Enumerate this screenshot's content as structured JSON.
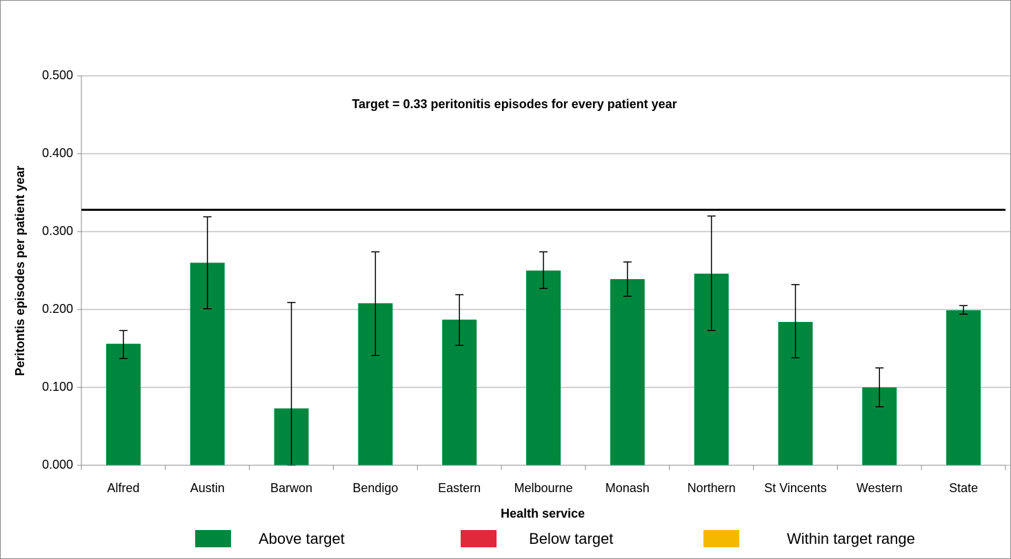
{
  "chart_data": {
    "type": "bar",
    "annotation": "Target  = 0.33 peritonitis episodes for every  patient year",
    "x_label": "Health service",
    "y_label": "Peritontis episodes per patient year",
    "categories": [
      "Alfred",
      "Austin",
      "Barwon",
      "Bendigo",
      "Eastern",
      "Melbourne",
      "Monash",
      "Northern",
      "St Vincents",
      "Western",
      "State"
    ],
    "series": [
      {
        "name": "Above target",
        "color": "#00873e",
        "values": [
          0.156,
          0.26,
          0.073,
          0.208,
          0.187,
          0.25,
          0.239,
          0.246,
          0.184,
          0.1,
          0.199
        ]
      },
      {
        "name": "Below target",
        "color": "#e0293b",
        "values": [
          null,
          null,
          null,
          null,
          null,
          null,
          null,
          null,
          null,
          null,
          null
        ]
      },
      {
        "name": "Within target  range",
        "color": "#f5b800",
        "values": [
          null,
          null,
          null,
          null,
          null,
          null,
          null,
          null,
          null,
          null,
          null
        ]
      }
    ],
    "lower": [
      0.137,
      0.201,
      0.0,
      0.141,
      0.154,
      0.227,
      0.217,
      0.173,
      0.138,
      0.075,
      0.194
    ],
    "upper": [
      0.173,
      0.319,
      0.209,
      0.274,
      0.219,
      0.274,
      0.261,
      0.32,
      0.232,
      0.125,
      0.205
    ],
    "target": 0.328,
    "ylim": [
      0,
      0.5
    ],
    "yticks": [
      {
        "value": 0,
        "label": "0.000"
      },
      {
        "value": 0.1,
        "label": "0.100"
      },
      {
        "value": 0.2,
        "label": "0.200"
      },
      {
        "value": 0.3,
        "label": "0.300"
      },
      {
        "value": 0.4,
        "label": "0.400"
      },
      {
        "value": 0.5,
        "label": "0.500"
      }
    ],
    "grid": true
  }
}
